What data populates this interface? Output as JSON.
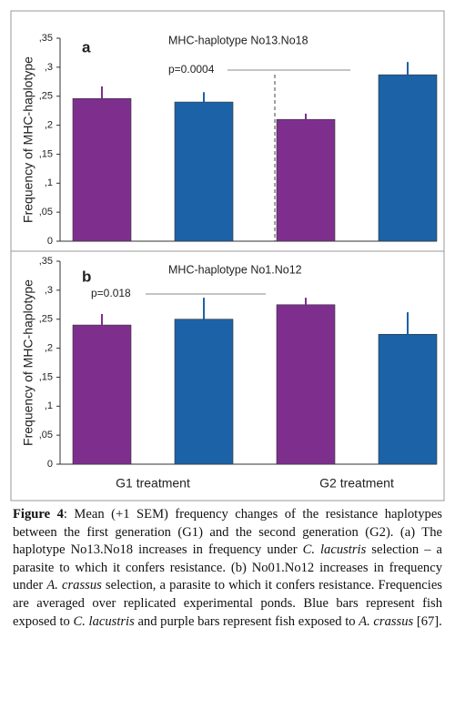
{
  "chart_data": [
    {
      "type": "bar",
      "panel_label": "a",
      "title": "MHC-haplotype No13.No18",
      "y_label": "Frequency of MHC-haplotype",
      "categories": [
        null,
        null
      ],
      "series": [
        {
          "color": "#7e2f8e",
          "values": [
            0.246,
            0.21
          ],
          "errors": [
            0.021,
            0.01
          ]
        },
        {
          "color": "#1b62a7",
          "values": [
            0.24,
            0.287
          ],
          "errors": [
            0.017,
            0.022
          ]
        }
      ],
      "annotation": "p=0.0004",
      "ylim": [
        0,
        0.35
      ],
      "yticks": [
        0,
        {
          "value": 0.05,
          "label": ",05"
        },
        {
          "value": 0.1,
          "label": ",1"
        },
        {
          "value": 0.15,
          "label": ",15"
        },
        {
          "value": 0.2,
          "label": ",2"
        },
        {
          "value": 0.25,
          "label": ",25"
        },
        {
          "value": 0.3,
          "label": ",3"
        },
        {
          "value": 0.35,
          "label": ",35"
        }
      ]
    },
    {
      "type": "bar",
      "panel_label": "b",
      "title": "MHC-haplotype No1.No12",
      "y_label": "Frequency of MHC-haplotype",
      "categories": [
        "G1 treatment",
        "G2 treatment"
      ],
      "series": [
        {
          "color": "#7e2f8e",
          "values": [
            0.24,
            0.275
          ],
          "errors": [
            0.019,
            0.012
          ]
        },
        {
          "color": "#1b62a7",
          "values": [
            0.25,
            0.224
          ],
          "errors": [
            0.037,
            0.038
          ]
        }
      ],
      "annotation": "p=0.018",
      "ylim": [
        0,
        0.35
      ],
      "yticks": [
        0,
        {
          "value": 0.05,
          "label": ",05"
        },
        {
          "value": 0.1,
          "label": ",1"
        },
        {
          "value": 0.15,
          "label": ",15"
        },
        {
          "value": 0.2,
          "label": ",2"
        },
        {
          "value": 0.25,
          "label": ",25"
        },
        {
          "value": 0.3,
          "label": ",3"
        },
        {
          "value": 0.35,
          "label": ",35"
        }
      ]
    }
  ],
  "caption": {
    "segments": [
      {
        "text": "Figure 4",
        "bold": true
      },
      {
        "text": ": Mean (+1 SEM) frequency changes of the resistance haplotypes between the first generation (G1) and the second generation (G2). (a) The haplotype No13.No18 increases in frequency under "
      },
      {
        "text": "C. lacustris",
        "italic": true
      },
      {
        "text": " selection – a parasite to which it confers resistance. (b) No01.No12 increases in frequency under "
      },
      {
        "text": "A. crassus",
        "italic": true
      },
      {
        "text": " selection, a parasite to which it confers resistance. Frequencies are averaged over replicated experimental ponds. Blue bars represent fish exposed to "
      },
      {
        "text": "C. lacustris",
        "italic": true
      },
      {
        "text": " and purple bars represent fish exposed to "
      },
      {
        "text": "A. crassus",
        "italic": true
      },
      {
        "text": " [67]."
      }
    ]
  }
}
